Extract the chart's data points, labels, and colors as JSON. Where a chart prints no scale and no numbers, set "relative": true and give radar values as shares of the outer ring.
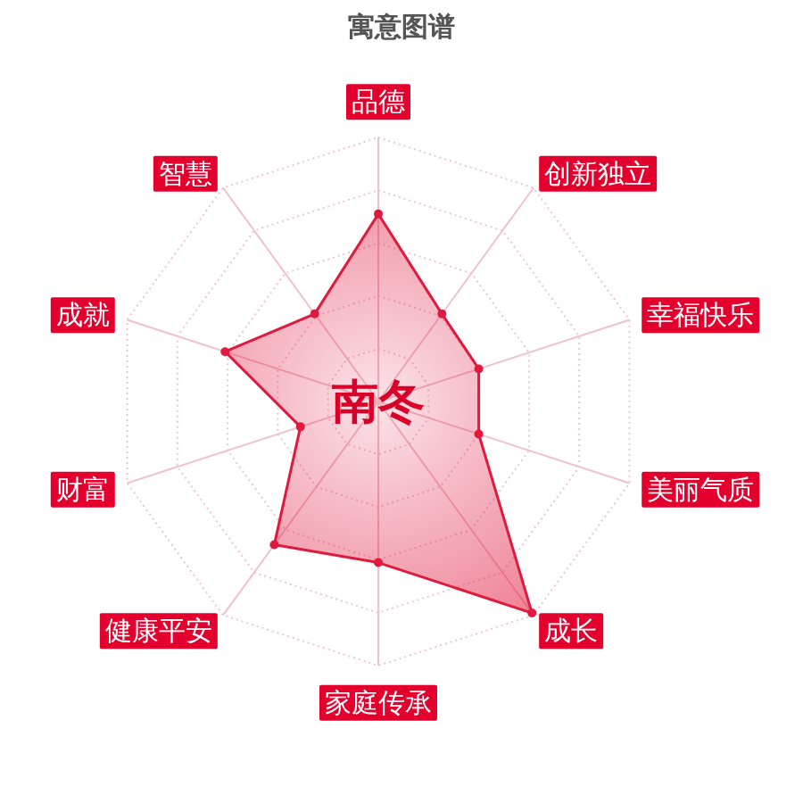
{
  "chart_data": {
    "type": "radar",
    "title": "寓意图谱",
    "relative": true,
    "grid": true,
    "marker": "circle",
    "categories": [
      "品德",
      "创新独立",
      "幸福快乐",
      "美丽气质",
      "成长",
      "家庭传承",
      "健康平安",
      "财富",
      "成就",
      "智慧"
    ],
    "series": [
      {
        "color": "#e0193f",
        "values": [
          0.71,
          0.41,
          0.4,
          0.4,
          0.99,
          0.61,
          0.67,
          0.31,
          0.61,
          0.41
        ]
      }
    ],
    "annotations": [
      "南冬"
    ]
  }
}
